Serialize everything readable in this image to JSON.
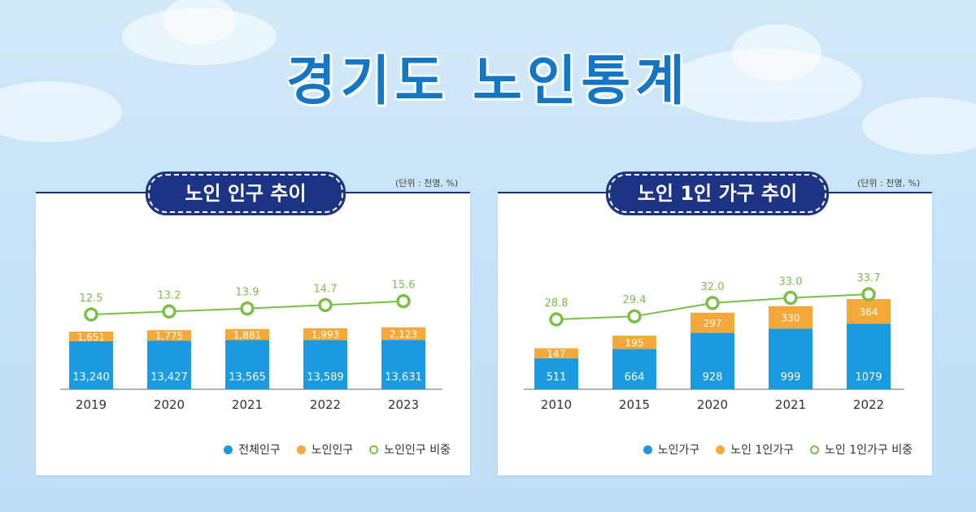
{
  "title": "경기도 노인통계",
  "colors": {
    "blue": "#1a9ae0",
    "orange": "#f5a93a",
    "green": "#7bbf49",
    "navy": "#1d3484"
  },
  "panels": [
    {
      "tag": "노인 인구 추이",
      "unit": "(단위 : 천명, %)"
    },
    {
      "tag": "노인 1인 가구 추이",
      "unit": "(단위 : 천명, %)"
    }
  ],
  "legends": [
    [
      "전체인구",
      "노인인구",
      "노인인구 비중"
    ],
    [
      "노인가구",
      "노인 1인가구",
      "노인 1인가구 비중"
    ]
  ],
  "chart_data": [
    {
      "type": "bar",
      "title": "노인 인구 추이",
      "stacked": true,
      "categories": [
        "2019",
        "2020",
        "2021",
        "2022",
        "2023"
      ],
      "series": [
        {
          "name": "전체인구",
          "kind": "bar",
          "values": [
            13240,
            13427,
            13565,
            13589,
            13631
          ],
          "labels": [
            "13,240",
            "13,427",
            "13,565",
            "13,589",
            "13,631"
          ]
        },
        {
          "name": "노인인구",
          "kind": "bar",
          "values": [
            1651,
            1775,
            1881,
            1993,
            2123
          ],
          "labels": [
            "1,651",
            "1,775",
            "1,881",
            "1,993",
            "2,123"
          ]
        },
        {
          "name": "노인인구 비중",
          "kind": "line",
          "values": [
            12.5,
            13.2,
            13.9,
            14.7,
            15.6
          ],
          "labels": [
            "12.5",
            "13.2",
            "13.9",
            "14.7",
            "15.6"
          ]
        }
      ],
      "legend_position": "bottom-right",
      "grid": false
    },
    {
      "type": "bar",
      "title": "노인 1인 가구 추이",
      "stacked": true,
      "categories": [
        "2010",
        "2015",
        "2020",
        "2021",
        "2022"
      ],
      "series": [
        {
          "name": "노인가구",
          "kind": "bar",
          "values": [
            511,
            664,
            928,
            999,
            1079
          ],
          "labels": [
            "511",
            "664",
            "928",
            "999",
            "1079"
          ]
        },
        {
          "name": "노인 1인가구",
          "kind": "bar",
          "values": [
            147,
            195,
            297,
            330,
            364
          ],
          "labels": [
            "147",
            "195",
            "297",
            "330",
            "364"
          ]
        },
        {
          "name": "노인 1인가구 비중",
          "kind": "line",
          "values": [
            28.8,
            29.4,
            32.0,
            33.0,
            33.7
          ],
          "labels": [
            "28.8",
            "29.4",
            "32.0",
            "33.0",
            "33.7"
          ]
        }
      ],
      "legend_position": "bottom-right",
      "grid": false
    }
  ]
}
